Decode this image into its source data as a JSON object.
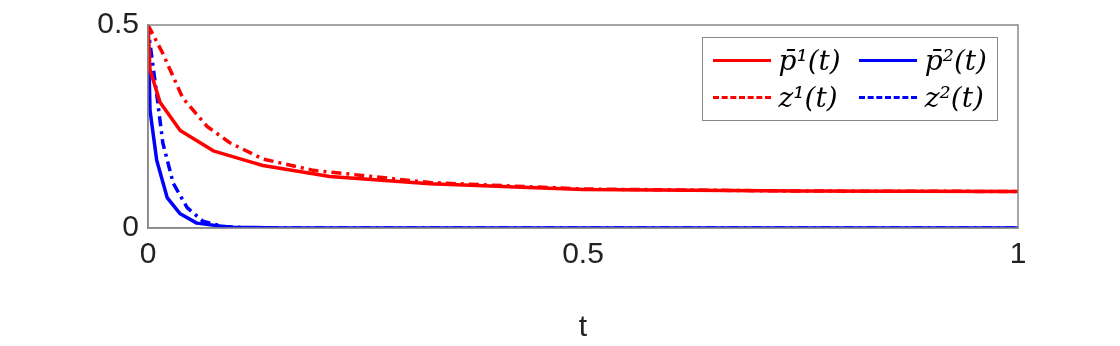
{
  "chart_data": {
    "type": "line",
    "xlabel": "t",
    "xlim": [
      0,
      1
    ],
    "xticks": [
      0,
      0.5,
      1
    ],
    "ylim": [
      0,
      0.5
    ],
    "yticks": [
      0,
      0.5
    ],
    "grid": false,
    "legend": "top right",
    "marker": "none",
    "series": [
      {
        "name": "p̄¹(t)",
        "color": "#ff0000",
        "line_style": "solid",
        "x": [
          0,
          0.0023,
          0.0138,
          0.037,
          0.075,
          0.132,
          0.209,
          0.324,
          0.5,
          0.75,
          1
        ],
        "values": [
          0.5,
          0.39,
          0.31,
          0.24,
          0.19,
          0.154,
          0.127,
          0.109,
          0.095,
          0.091,
          0.09
        ]
      },
      {
        "name": "z¹(t)",
        "color": "#ff0000",
        "line_style": "dashed",
        "x": [
          0,
          0.017,
          0.04,
          0.068,
          0.094,
          0.132,
          0.19,
          0.324,
          0.5,
          0.75,
          1
        ],
        "values": [
          0.5,
          0.43,
          0.32,
          0.25,
          0.21,
          0.17,
          0.142,
          0.112,
          0.096,
          0.091,
          0.09
        ]
      },
      {
        "name": "p̄²(t)",
        "color": "#0000ff",
        "line_style": "solid",
        "x": [
          0,
          0.0023,
          0.01,
          0.022,
          0.037,
          0.056,
          0.094,
          0.15,
          1
        ],
        "values": [
          0.5,
          0.29,
          0.167,
          0.075,
          0.035,
          0.012,
          0.002,
          0,
          0
        ]
      },
      {
        "name": "z²(t)",
        "color": "#0000ff",
        "line_style": "dashed",
        "x": [
          0,
          0.002,
          0.01,
          0.017,
          0.029,
          0.045,
          0.063,
          0.085,
          0.12,
          1
        ],
        "values": [
          0.5,
          0.46,
          0.33,
          0.21,
          0.11,
          0.05,
          0.017,
          0.004,
          0,
          0
        ]
      }
    ]
  }
}
